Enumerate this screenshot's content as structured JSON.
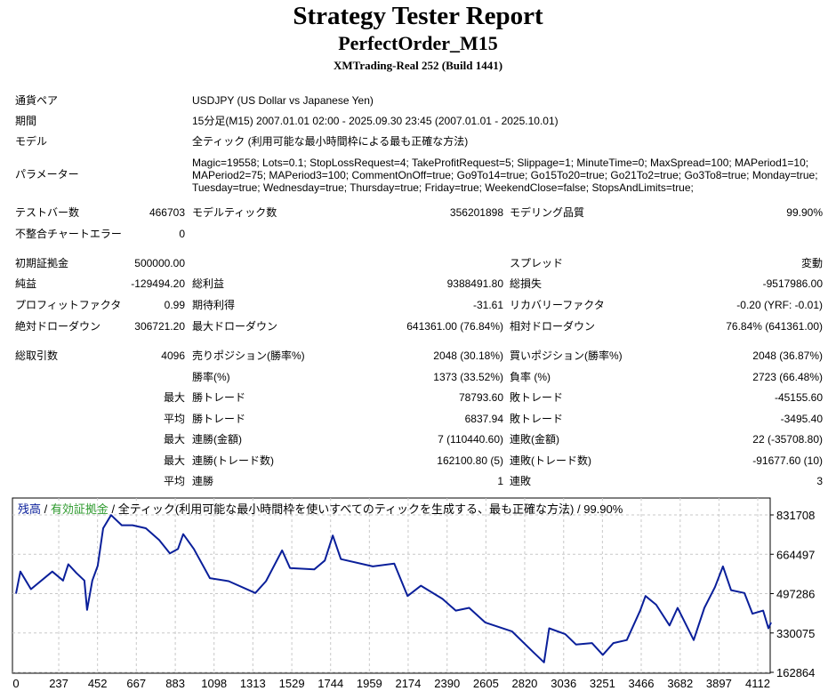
{
  "header": {
    "title": "Strategy Tester Report",
    "expert": "PerfectOrder_M15",
    "server": "XMTrading-Real 252 (Build 1441)"
  },
  "info": {
    "symbol_label": "通貨ペア",
    "symbol": "USDJPY (US Dollar vs Japanese Yen)",
    "period_label": "期間",
    "period": "15分足(M15) 2007.01.01 02:00 - 2025.09.30 23:45 (2007.01.01 - 2025.10.01)",
    "model_label": "モデル",
    "model": "全ティック (利用可能な最小時間枠による最も正確な方法)",
    "params_label": "パラメーター",
    "params": [
      "Magic=19558; Lots=0.1; StopLossRequest=4; TakeProfitRequest=5; Slippage=1; MinuteTime=0; MaxSpread=100; MAPeriod1=10;",
      "MAPeriod2=75; MAPeriod3=100; CommentOnOff=true; Go9To14=true; Go15To20=true; Go21To2=true; Go3To8=true; Monday=true;",
      "Tuesday=true; Wednesday=true; Thursday=true; Friday=true; WeekendClose=false; StopsAndLimits=true;"
    ]
  },
  "rows": [
    [
      "テストバー数",
      "466703",
      "モデルティック数",
      "356201898",
      "モデリング品質",
      "99.90%"
    ],
    [
      "不整合チャートエラー",
      "0",
      "",
      "",
      "",
      ""
    ],
    [
      "初期証拠金",
      "500000.00",
      "",
      "",
      "スプレッド",
      "変動"
    ],
    [
      "純益",
      "-129494.20",
      "総利益",
      "9388491.80",
      "総損失",
      "-9517986.00"
    ],
    [
      "プロフィットファクタ",
      "0.99",
      "期待利得",
      "-31.61",
      "リカバリーファクタ",
      "-0.20 (YRF: -0.01)"
    ],
    [
      "絶対ドローダウン",
      "306721.20",
      "最大ドローダウン",
      "641361.00 (76.84%)",
      "相対ドローダウン",
      "76.84% (641361.00)"
    ],
    [
      "総取引数",
      "4096",
      "売りポジション(勝率%)",
      "2048 (30.18%)",
      "買いポジション(勝率%)",
      "2048 (36.87%)"
    ],
    [
      "",
      "",
      "勝率(%)",
      "1373 (33.52%)",
      "負率 (%)",
      "2723 (66.48%)"
    ],
    [
      "",
      "最大",
      "勝トレード",
      "78793.60",
      "敗トレード",
      "-45155.60"
    ],
    [
      "",
      "平均",
      "勝トレード",
      "6837.94",
      "敗トレード",
      "-3495.40"
    ],
    [
      "",
      "最大",
      "連勝(金額)",
      "7 (110440.60)",
      "連敗(金額)",
      "22 (-35708.80)"
    ],
    [
      "",
      "最大",
      "連勝(トレード数)",
      "162100.80 (5)",
      "連敗(トレード数)",
      "-91677.60 (10)"
    ],
    [
      "",
      "平均",
      "連勝",
      "1",
      "連敗",
      "3"
    ]
  ],
  "chart_data": {
    "type": "line",
    "legend": {
      "balance": "残高",
      "sep": " / ",
      "equity": "有効証拠金",
      "rest": " / 全ティック(利用可能な最小時間枠を使いすべてのティックを生成する、最も正確な方法) / 99.90%"
    },
    "colors": {
      "line": "#0a1f9a",
      "balance_label": "#0a1f9a",
      "equity_label": "#2e9a2e",
      "grid": "#c8c8c8"
    },
    "xticks": [
      0,
      237,
      452,
      667,
      883,
      1098,
      1313,
      1529,
      1744,
      1959,
      2174,
      2390,
      2605,
      2820,
      3036,
      3251,
      3466,
      3682,
      3897,
      4112
    ],
    "yticks": [
      831708,
      664497,
      497286,
      330075,
      162864
    ],
    "xlim": [
      0,
      4112
    ],
    "ylim": [
      162864,
      831708
    ],
    "x": [
      0,
      24,
      83,
      201,
      261,
      290,
      335,
      379,
      394,
      423,
      453,
      483,
      527,
      586,
      646,
      720,
      794,
      853,
      898,
      927,
      986,
      1075,
      1179,
      1327,
      1386,
      1475,
      1519,
      1653,
      1712,
      1756,
      1801,
      1978,
      2097,
      2171,
      2245,
      2364,
      2438,
      2512,
      2601,
      2749,
      2867,
      2927,
      2956,
      3045,
      3104,
      3193,
      3253,
      3312,
      3386,
      3460,
      3490,
      3549,
      3623,
      3668,
      3757,
      3816,
      3875,
      3919,
      3964,
      4038,
      4083,
      4142,
      4171,
      4186
    ],
    "y": [
      497000,
      591000,
      516000,
      591000,
      553000,
      622000,
      585000,
      553000,
      428000,
      553000,
      616000,
      775000,
      831000,
      788000,
      788000,
      775000,
      725000,
      668000,
      687000,
      750000,
      687000,
      563000,
      550000,
      500000,
      550000,
      681000,
      606000,
      600000,
      638000,
      744000,
      644000,
      613000,
      625000,
      487000,
      531000,
      475000,
      425000,
      437000,
      375000,
      337000,
      249000,
      205000,
      350000,
      325000,
      281000,
      287000,
      237000,
      287000,
      300000,
      425000,
      487000,
      450000,
      362000,
      437000,
      300000,
      437000,
      525000,
      613000,
      512000,
      500000,
      412000,
      425000,
      350000,
      375000
    ]
  }
}
